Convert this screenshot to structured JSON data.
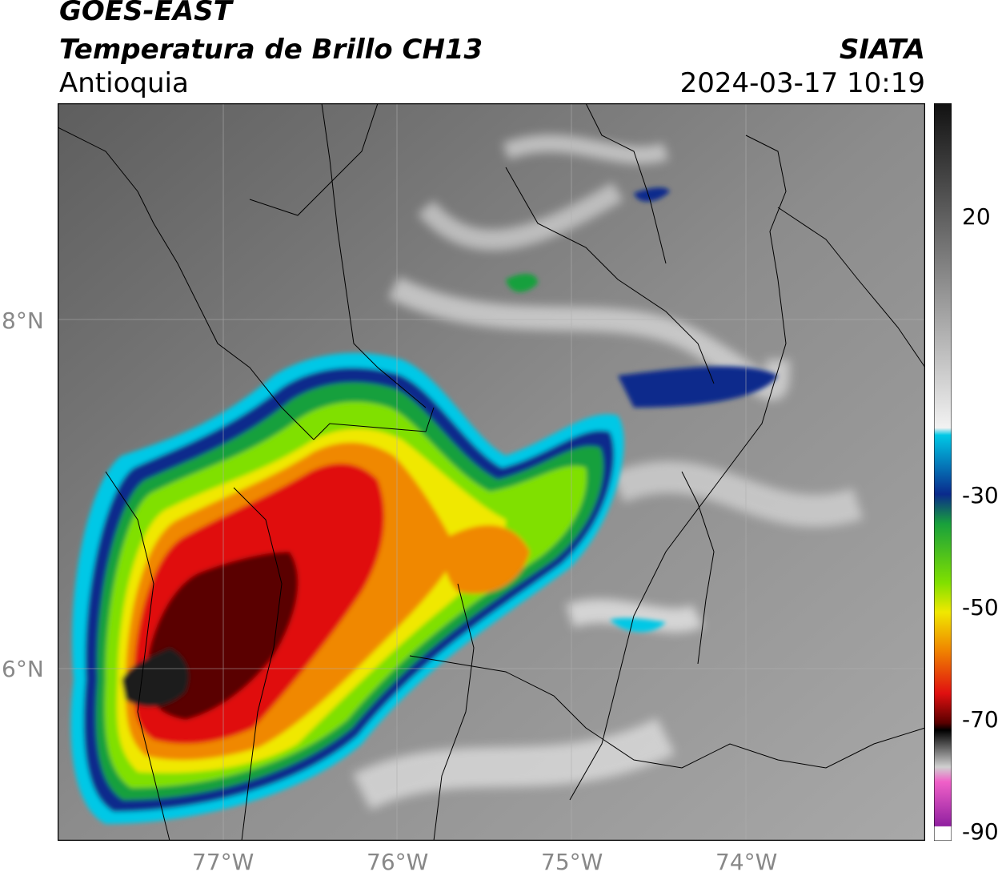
{
  "header": {
    "satellite": "GOES-EAST",
    "product": "Temperatura de Brillo CH13",
    "region": "Antioquia",
    "organization": "SIATA",
    "datetime": "2024-03-17 10:19"
  },
  "axes": {
    "lat_labels": [
      {
        "label": "8°N",
        "value": 8
      },
      {
        "label": "6°N",
        "value": 6
      }
    ],
    "lon_labels": [
      {
        "label": "77°W",
        "value": -77
      },
      {
        "label": "76°W",
        "value": -76
      },
      {
        "label": "75°W",
        "value": -75
      },
      {
        "label": "74°W",
        "value": -74
      }
    ],
    "lon_range": [
      -77.95,
      -73.0
    ],
    "lat_range": [
      5.0,
      9.2
    ]
  },
  "colorbar": {
    "ticks": [
      {
        "label": "20",
        "value": 20
      },
      {
        "label": "-30",
        "value": -30
      },
      {
        "label": "-50",
        "value": -50
      },
      {
        "label": "-70",
        "value": -70
      },
      {
        "label": "-90",
        "value": -90
      }
    ],
    "colors": {
      "grey_top": "#111111",
      "grey_bottom": "#f2f2f2",
      "cyan": "#00c8e6",
      "blue": "#0a2a8c",
      "green": "#18a03c",
      "lime": "#80e000",
      "yellow": "#f0e800",
      "orange": "#f08800",
      "red": "#e01010",
      "darkred": "#5a0000",
      "black": "#000000",
      "pink": "#f060c8",
      "purple": "#9020a0"
    }
  }
}
